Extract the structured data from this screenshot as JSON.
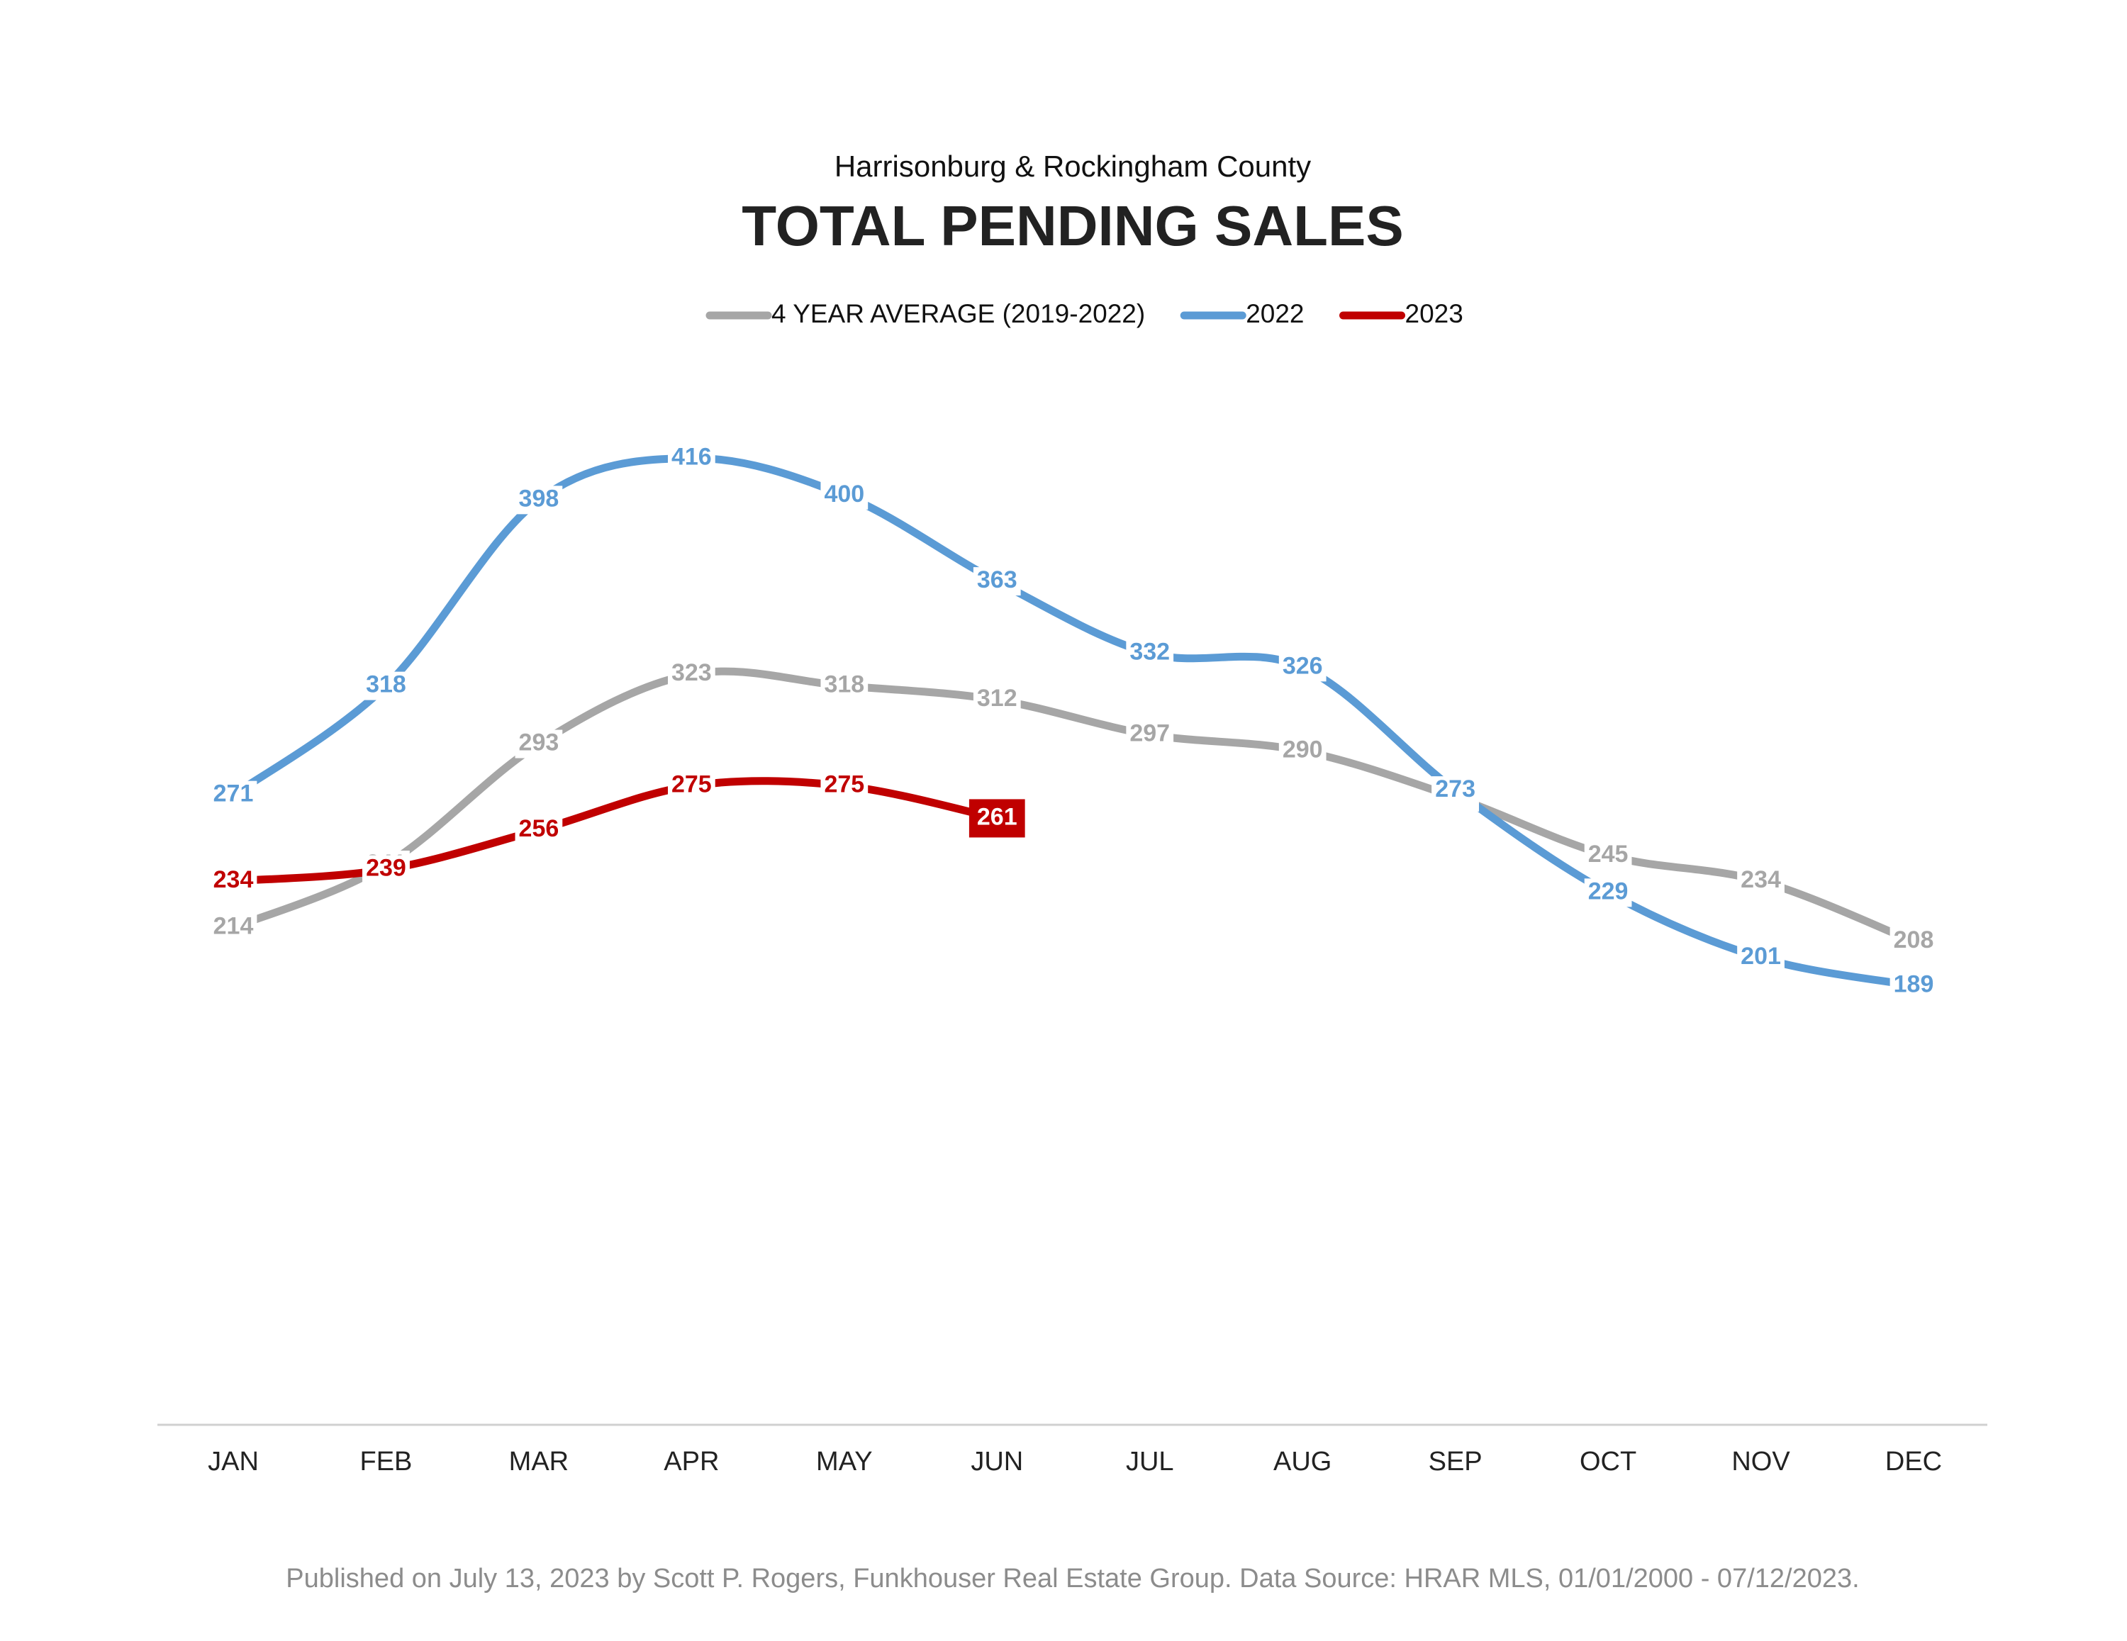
{
  "chart_data": {
    "type": "line",
    "subtitle": "Harrisonburg & Rockingham County",
    "title": "TOTAL PENDING SALES",
    "categories": [
      "JAN",
      "FEB",
      "MAR",
      "APR",
      "MAY",
      "JUN",
      "JUL",
      "AUG",
      "SEP",
      "OCT",
      "NOV",
      "DEC"
    ],
    "series": [
      {
        "name": "4 YEAR AVERAGE (2019-2022)",
        "color": "#a6a6a6",
        "values": [
          214,
          241,
          293,
          323,
          318,
          312,
          297,
          290,
          270,
          245,
          234,
          208
        ]
      },
      {
        "name": "2022",
        "color": "#5b9bd5",
        "values": [
          271,
          318,
          398,
          416,
          400,
          363,
          332,
          326,
          273,
          229,
          201,
          189
        ]
      },
      {
        "name": "2023",
        "color": "#c00000",
        "values": [
          234,
          239,
          256,
          275,
          275,
          261,
          null,
          null,
          null,
          null,
          null,
          null
        ],
        "highlight_last": true
      }
    ],
    "ylim": [
      0,
      500
    ],
    "smooth": true,
    "legend": "top",
    "note": "Published on July 13, 2023 by Scott P. Rogers, Funkhouser Real Estate Group. Data Source: HRAR MLS, 01/01/2000 - 07/12/2023."
  }
}
